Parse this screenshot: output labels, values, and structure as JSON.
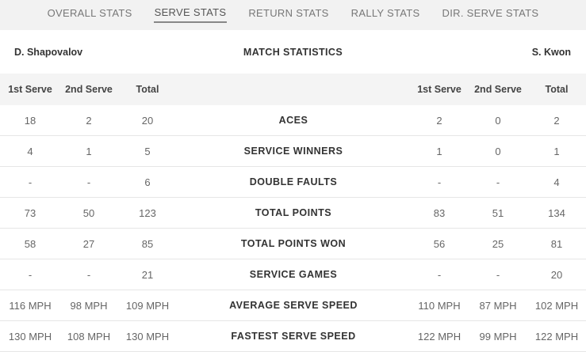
{
  "tabs": [
    "OVERALL STATS",
    "SERVE STATS",
    "RETURN STATS",
    "RALLY STATS",
    "DIR. SERVE STATS"
  ],
  "active_tab": "SERVE STATS",
  "header": {
    "player1": "D. Shapovalov",
    "title": "MATCH STATISTICS",
    "player2": "S. Kwon"
  },
  "columns": {
    "p1": [
      "1st Serve",
      "2nd Serve",
      "Total"
    ],
    "p2": [
      "1st Serve",
      "2nd Serve",
      "Total"
    ]
  },
  "rows": [
    {
      "label": "ACES",
      "p1": [
        "18",
        "2",
        "20"
      ],
      "p2": [
        "2",
        "0",
        "2"
      ]
    },
    {
      "label": "SERVICE WINNERS",
      "p1": [
        "4",
        "1",
        "5"
      ],
      "p2": [
        "1",
        "0",
        "1"
      ]
    },
    {
      "label": "DOUBLE FAULTS",
      "p1": [
        "-",
        "-",
        "6"
      ],
      "p2": [
        "-",
        "-",
        "4"
      ]
    },
    {
      "label": "TOTAL POINTS",
      "p1": [
        "73",
        "50",
        "123"
      ],
      "p2": [
        "83",
        "51",
        "134"
      ]
    },
    {
      "label": "TOTAL POINTS WON",
      "p1": [
        "58",
        "27",
        "85"
      ],
      "p2": [
        "56",
        "25",
        "81"
      ]
    },
    {
      "label": "SERVICE GAMES",
      "p1": [
        "-",
        "-",
        "21"
      ],
      "p2": [
        "-",
        "-",
        "20"
      ]
    },
    {
      "label": "AVERAGE SERVE SPEED",
      "p1": [
        "116 MPH",
        "98 MPH",
        "109 MPH"
      ],
      "p2": [
        "110 MPH",
        "87 MPH",
        "102 MPH"
      ]
    },
    {
      "label": "FASTEST SERVE SPEED",
      "p1": [
        "130 MPH",
        "108 MPH",
        "130 MPH"
      ],
      "p2": [
        "122 MPH",
        "99 MPH",
        "122 MPH"
      ]
    }
  ]
}
